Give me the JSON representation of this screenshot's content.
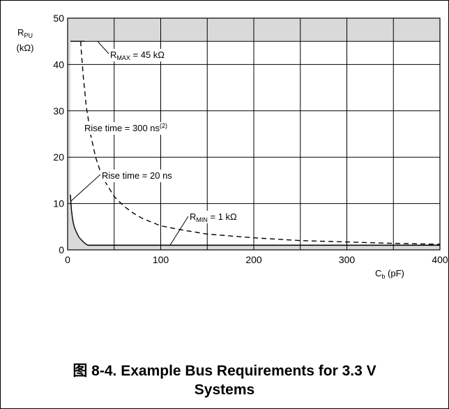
{
  "chart_data": {
    "type": "line",
    "title": "",
    "ylabel_main": "R",
    "ylabel_sub": "PU",
    "ylabel_unit": "(kΩ)",
    "xlabel_main": "C",
    "xlabel_sub": "b",
    "xlabel_unit": " (pF)",
    "xlim": [
      0,
      400
    ],
    "ylim": [
      0,
      50
    ],
    "x_ticks": [
      0,
      100,
      200,
      300,
      400
    ],
    "y_ticks": [
      0,
      10,
      20,
      30,
      40,
      50
    ],
    "x_grid_step": 50,
    "y_grid_step": 10,
    "grid": true,
    "shaded_out_of_range_color": "#d9d9d9",
    "r_max": 45,
    "r_min": 1,
    "series": [
      {
        "key": "rise20",
        "style": "solid",
        "x": [
          3,
          4,
          5,
          6,
          7,
          8,
          10,
          12,
          14,
          16,
          18,
          20,
          22,
          24,
          26,
          28,
          30,
          35,
          40,
          50,
          60,
          80,
          100,
          150,
          200,
          250,
          300,
          350,
          400
        ],
        "y": [
          11.9,
          8.9,
          7.1,
          5.9,
          5.1,
          4.5,
          3.6,
          2.8,
          2.3,
          1.9,
          1.5,
          1.2,
          1.0,
          1.0,
          1.0,
          1.0,
          1.0,
          1.0,
          1.0,
          1.0,
          1.0,
          1.0,
          1.0,
          1.0,
          1.0,
          1.0,
          1.0,
          1.0,
          1.0
        ]
      },
      {
        "key": "rise300",
        "style": "dashed",
        "x": [
          14,
          15,
          17,
          20,
          25,
          30,
          35,
          40,
          50,
          60,
          70,
          80,
          100,
          120,
          150,
          200,
          250,
          300,
          350,
          400
        ],
        "y": [
          45,
          42,
          37,
          31,
          24.6,
          20,
          17,
          14.8,
          11.5,
          9.5,
          8.0,
          6.8,
          5.2,
          4.4,
          3.4,
          2.6,
          2.0,
          1.7,
          1.4,
          1.2
        ]
      }
    ],
    "annotations": [
      {
        "key": "rmax",
        "main": "R",
        "sub": "MAX",
        "rest": " = 45 kΩ",
        "sup": ""
      },
      {
        "key": "rise300",
        "main": "Rise time = 300 ns",
        "sub": "",
        "rest": "",
        "sup": "(2)"
      },
      {
        "key": "rise20",
        "main": "Rise time = 20 ns",
        "sub": "",
        "rest": "",
        "sup": ""
      },
      {
        "key": "rmin",
        "main": "R",
        "sub": "MIN",
        "rest": " = 1 kΩ",
        "sup": ""
      }
    ]
  },
  "caption": {
    "line1": "图 8-4. Example Bus Requirements for 3.3 V",
    "line2": "Systems"
  }
}
